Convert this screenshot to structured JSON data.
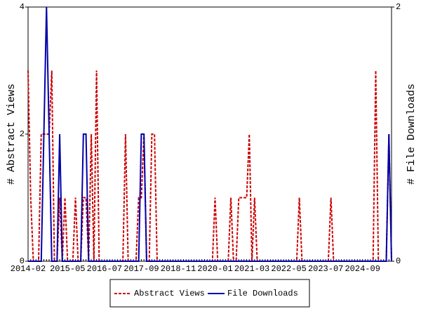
{
  "chart_data": {
    "type": "line",
    "ylabel": "# Abstract Views",
    "y2label": "# File Downloads",
    "x": [
      "2014-02",
      "2014-03",
      "2014-04",
      "2014-05",
      "2014-06",
      "2014-07",
      "2014-08",
      "2014-09",
      "2014-10",
      "2014-11",
      "2014-12",
      "2015-01",
      "2015-02",
      "2015-03",
      "2015-04",
      "2015-05",
      "2015-06",
      "2015-07",
      "2015-08",
      "2015-09",
      "2015-10",
      "2015-11",
      "2015-12",
      "2016-01",
      "2016-02",
      "2016-03",
      "2016-04",
      "2016-05",
      "2016-06",
      "2016-07",
      "2016-08",
      "2016-09",
      "2016-10",
      "2016-11",
      "2016-12",
      "2017-01",
      "2017-02",
      "2017-03",
      "2017-04",
      "2017-05",
      "2017-06",
      "2017-07",
      "2017-08",
      "2017-09",
      "2017-10",
      "2017-11",
      "2017-12",
      "2018-01",
      "2018-02",
      "2018-03",
      "2018-04",
      "2018-05",
      "2018-06",
      "2018-07",
      "2018-08",
      "2018-09",
      "2018-10",
      "2018-11",
      "2018-12",
      "2019-01",
      "2019-02",
      "2019-03",
      "2019-04",
      "2019-05",
      "2019-06",
      "2019-07",
      "2019-08",
      "2019-09",
      "2019-10",
      "2019-11",
      "2019-12",
      "2020-01",
      "2020-02",
      "2020-03",
      "2020-04",
      "2020-05",
      "2020-06",
      "2020-07",
      "2020-08",
      "2020-09",
      "2020-10",
      "2020-11",
      "2020-12",
      "2021-01",
      "2021-02",
      "2021-03",
      "2021-04",
      "2021-05",
      "2021-06",
      "2021-07",
      "2021-08",
      "2021-09",
      "2021-10",
      "2021-11",
      "2021-12",
      "2022-01",
      "2022-02",
      "2022-03",
      "2022-04",
      "2022-05",
      "2022-06",
      "2022-07",
      "2022-08",
      "2022-09",
      "2022-10",
      "2022-11",
      "2022-12",
      "2023-01",
      "2023-02",
      "2023-03",
      "2023-04",
      "2023-05",
      "2023-06",
      "2023-07",
      "2023-08",
      "2023-09",
      "2023-10",
      "2023-11",
      "2023-12",
      "2024-01",
      "2024-02",
      "2024-03",
      "2024-04",
      "2024-05",
      "2024-06",
      "2024-07",
      "2024-08",
      "2024-09",
      "2024-10",
      "2024-11",
      "2024-12",
      "2025-01",
      "2025-02",
      "2025-03",
      "2025-04",
      "2025-05",
      "2025-06",
      "2025-07",
      "2025-08"
    ],
    "xticks": [
      "2014-02",
      "2015-05",
      "2016-07",
      "2017-09",
      "2018-11",
      "2020-01",
      "2021-03",
      "2022-05",
      "2023-07",
      "2024-09"
    ],
    "ylim": [
      0,
      4
    ],
    "yticks": [
      0,
      2,
      4
    ],
    "y2lim": [
      0,
      2
    ],
    "y2ticks": [
      0,
      2
    ],
    "legend": "bottom",
    "series": [
      {
        "name": "Abstract Views",
        "color": "#cc0000",
        "dashed": true,
        "values": [
          3,
          1,
          0,
          0,
          0,
          2,
          2,
          2,
          2,
          3,
          0,
          0,
          1,
          0,
          1,
          0,
          0,
          0,
          1,
          0,
          0,
          1,
          1,
          0,
          2,
          0,
          3,
          0,
          0,
          0,
          0,
          0,
          0,
          0,
          0,
          0,
          0,
          2,
          0,
          0,
          0,
          0,
          1,
          1,
          2,
          0,
          0,
          2,
          2,
          0,
          0,
          0,
          0,
          0,
          0,
          0,
          0,
          0,
          0,
          0,
          0,
          0,
          0,
          0,
          0,
          0,
          0,
          0,
          0,
          0,
          0,
          1,
          0,
          0,
          0,
          0,
          0,
          1,
          0,
          0,
          1,
          1,
          1,
          1,
          2,
          0,
          1,
          0,
          0,
          0,
          0,
          0,
          0,
          0,
          0,
          0,
          0,
          0,
          0,
          0,
          0,
          0,
          0,
          1,
          0,
          0,
          0,
          0,
          0,
          0,
          0,
          0,
          0,
          0,
          0,
          1,
          0,
          0,
          0,
          0,
          0,
          0,
          0,
          0,
          0,
          0,
          0,
          0,
          0,
          0,
          0,
          0,
          3,
          0,
          0,
          0,
          0,
          2,
          0
        ]
      },
      {
        "name": "File Downloads",
        "color": "#0000aa",
        "axis": "y2",
        "dashed": false,
        "values": [
          0,
          0,
          0,
          0,
          0,
          0,
          1,
          2,
          1,
          0,
          0,
          0,
          1,
          0,
          0,
          0,
          0,
          0,
          0,
          0,
          0,
          1,
          1,
          0,
          0,
          0,
          0,
          0,
          0,
          0,
          0,
          0,
          0,
          0,
          0,
          0,
          0,
          0,
          0,
          0,
          0,
          0,
          0,
          1,
          1,
          0,
          0,
          0,
          0,
          0,
          0,
          0,
          0,
          0,
          0,
          0,
          0,
          0,
          0,
          0,
          0,
          0,
          0,
          0,
          0,
          0,
          0,
          0,
          0,
          0,
          0,
          0,
          0,
          0,
          0,
          0,
          0,
          0,
          0,
          0,
          0,
          0,
          0,
          0,
          0,
          0,
          0,
          0,
          0,
          0,
          0,
          0,
          0,
          0,
          0,
          0,
          0,
          0,
          0,
          0,
          0,
          0,
          0,
          0,
          0,
          0,
          0,
          0,
          0,
          0,
          0,
          0,
          0,
          0,
          0,
          0,
          0,
          0,
          0,
          0,
          0,
          0,
          0,
          0,
          0,
          0,
          0,
          0,
          0,
          0,
          0,
          0,
          0,
          0,
          0,
          0,
          0,
          1,
          0
        ]
      }
    ]
  }
}
